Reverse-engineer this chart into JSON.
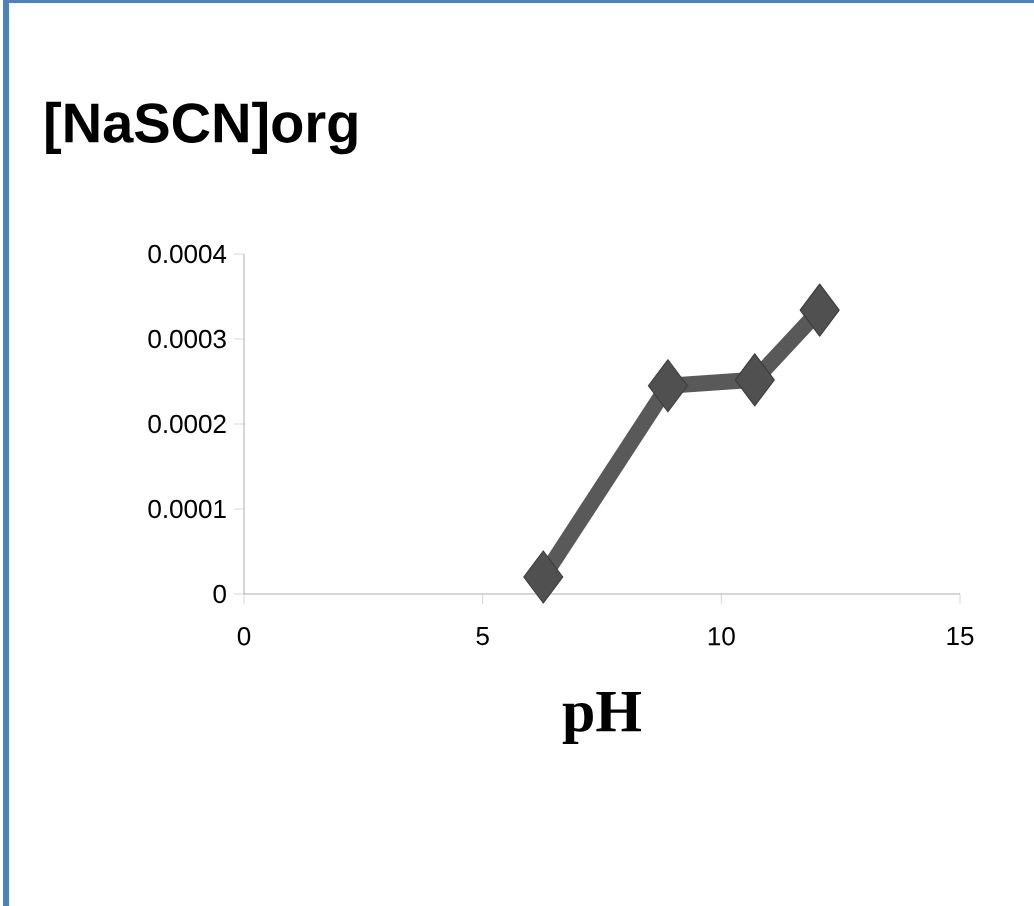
{
  "chart_data": {
    "type": "line",
    "title": "[NaSCN]org",
    "xlabel": "pH",
    "x": [
      6.27,
      8.88,
      10.7,
      12.06
    ],
    "series": [
      {
        "color": "#595959",
        "values": [
          2e-05,
          0.000245,
          0.000252,
          0.000334
        ]
      }
    ],
    "xlim": [
      0,
      15
    ],
    "xticks": [
      0,
      5,
      10,
      15
    ],
    "ylim": [
      0,
      0.0004
    ],
    "yticks": [
      {
        "value": 0,
        "label": "0"
      },
      {
        "value": 0.0001,
        "label": "0.0001"
      },
      {
        "value": 0.0002,
        "label": "0.0002"
      },
      {
        "value": 0.0003,
        "label": "0.0003"
      },
      {
        "value": 0.0004,
        "label": "0.0004"
      }
    ],
    "marker": "diamond",
    "line_style": "solid"
  }
}
